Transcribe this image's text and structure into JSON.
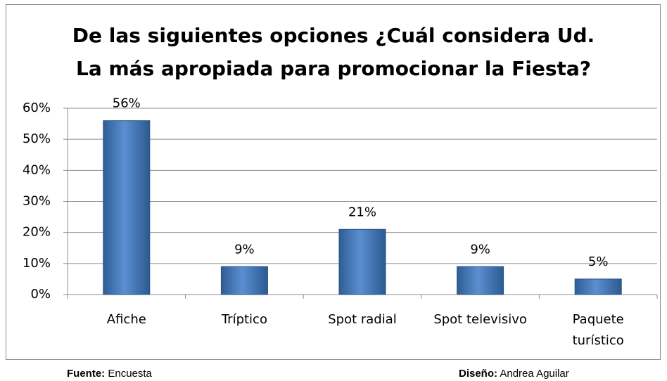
{
  "chart_data": {
    "type": "bar",
    "title": [
      "De las siguientes opciones ¿Cuál considera Ud.",
      "La más apropiada para promocionar la Fiesta?"
    ],
    "categories": [
      "Afiche",
      "Tríptico",
      "Spot radial",
      "Spot televisivo",
      "Paquete turístico"
    ],
    "values": [
      56,
      9,
      21,
      9,
      5
    ],
    "value_labels": [
      "56%",
      "9%",
      "21%",
      "9%",
      "5%"
    ],
    "color": "#4f81bd",
    "ylim": [
      0,
      60
    ],
    "yticks": [
      {
        "value": 0,
        "label": "0%"
      },
      {
        "value": 10,
        "label": "10%"
      },
      {
        "value": 20,
        "label": "20%"
      },
      {
        "value": 30,
        "label": "30%"
      },
      {
        "value": 40,
        "label": "40%"
      },
      {
        "value": 50,
        "label": "50%"
      },
      {
        "value": 60,
        "label": "60%"
      }
    ],
    "grid": true
  },
  "footer": {
    "source": {
      "label": "Fuente:",
      "text": "Encuesta"
    },
    "design": {
      "label": "Diseño:",
      "text": "Andrea Aguilar"
    }
  }
}
